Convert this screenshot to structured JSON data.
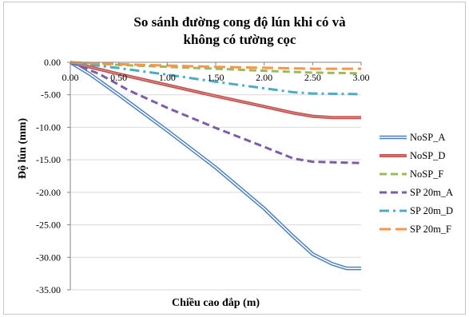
{
  "chart_data": {
    "type": "line",
    "title_lines": [
      "So sánh đường cong độ lún khi có và",
      "không có tường cọc"
    ],
    "xlabel": "Chiều cao đắp (m)",
    "ylabel": "Độ lún (mm)",
    "xlim": [
      0,
      3
    ],
    "ylim": [
      -35,
      0
    ],
    "x_ticks": [
      0,
      0.5,
      1,
      1.5,
      2,
      2.5,
      3
    ],
    "x_tick_labels": [
      "0.00",
      "0.50",
      "1.00",
      "1.50",
      "2.00",
      "2.50",
      "3.00"
    ],
    "y_ticks": [
      0,
      -5,
      -10,
      -15,
      -20,
      -25,
      -30,
      -35
    ],
    "y_tick_labels": [
      "0.00",
      "-5.00",
      "-10.00",
      "-15.00",
      "-20.00",
      "-25.00",
      "-30.00",
      "-35.00"
    ],
    "legend_position": "right",
    "series": [
      {
        "name": "NoSP_A",
        "color": "#4a7ebb",
        "style": "double",
        "points": [
          [
            0,
            0
          ],
          [
            0.2,
            -1.8
          ],
          [
            0.5,
            -5.0
          ],
          [
            1.0,
            -10.5
          ],
          [
            1.5,
            -16.2
          ],
          [
            2.0,
            -22.5
          ],
          [
            2.3,
            -26.8
          ],
          [
            2.5,
            -29.5
          ],
          [
            2.7,
            -31.0
          ],
          [
            2.85,
            -31.7
          ],
          [
            3.0,
            -31.7
          ]
        ]
      },
      {
        "name": "NoSP_D",
        "color": "#c0504d",
        "style": "solid-thick",
        "points": [
          [
            0,
            0
          ],
          [
            0.5,
            -1.8
          ],
          [
            1.0,
            -3.5
          ],
          [
            1.5,
            -5.2
          ],
          [
            2.0,
            -6.8
          ],
          [
            2.3,
            -7.8
          ],
          [
            2.5,
            -8.3
          ],
          [
            2.7,
            -8.5
          ],
          [
            3.0,
            -8.5
          ]
        ]
      },
      {
        "name": "NoSP_F",
        "color": "#9bbb59",
        "style": "dash",
        "points": [
          [
            0,
            0
          ],
          [
            0.5,
            -0.4
          ],
          [
            1.0,
            -0.7
          ],
          [
            1.5,
            -1.0
          ],
          [
            2.0,
            -1.3
          ],
          [
            2.5,
            -1.6
          ],
          [
            3.0,
            -1.7
          ]
        ]
      },
      {
        "name": "SP 20m_A",
        "color": "#7b5ea7",
        "style": "dash",
        "points": [
          [
            0,
            0
          ],
          [
            0.3,
            -1.8
          ],
          [
            0.6,
            -4.3
          ],
          [
            1.0,
            -7.0
          ],
          [
            1.5,
            -10.1
          ],
          [
            2.0,
            -13.0
          ],
          [
            2.3,
            -14.8
          ],
          [
            2.5,
            -15.3
          ],
          [
            3.0,
            -15.5
          ]
        ]
      },
      {
        "name": "SP 20m_D",
        "color": "#4bacc6",
        "style": "dashdot",
        "points": [
          [
            0,
            0
          ],
          [
            0.5,
            -0.9
          ],
          [
            1.0,
            -1.9
          ],
          [
            1.5,
            -3.0
          ],
          [
            2.0,
            -4.0
          ],
          [
            2.3,
            -4.6
          ],
          [
            2.5,
            -4.8
          ],
          [
            3.0,
            -4.9
          ]
        ]
      },
      {
        "name": "SP 20m_F",
        "color": "#f79646",
        "style": "longdash",
        "points": [
          [
            0,
            0
          ],
          [
            0.5,
            -0.3
          ],
          [
            1.0,
            -0.5
          ],
          [
            1.5,
            -0.7
          ],
          [
            2.0,
            -0.85
          ],
          [
            2.5,
            -1.0
          ],
          [
            3.0,
            -1.0
          ]
        ]
      }
    ]
  }
}
